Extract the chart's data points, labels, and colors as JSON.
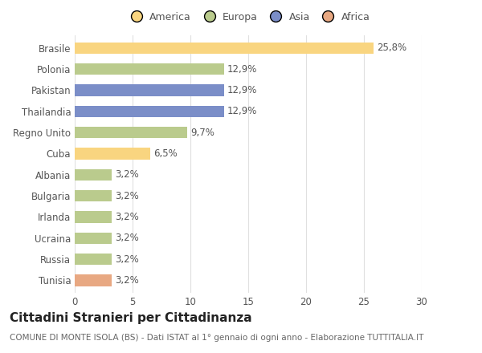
{
  "categories": [
    "Brasile",
    "Polonia",
    "Pakistan",
    "Thailandia",
    "Regno Unito",
    "Cuba",
    "Albania",
    "Bulgaria",
    "Irlanda",
    "Ucraina",
    "Russia",
    "Tunisia"
  ],
  "values": [
    25.8,
    12.9,
    12.9,
    12.9,
    9.7,
    6.5,
    3.2,
    3.2,
    3.2,
    3.2,
    3.2,
    3.2
  ],
  "labels": [
    "25,8%",
    "12,9%",
    "12,9%",
    "12,9%",
    "9,7%",
    "6,5%",
    "3,2%",
    "3,2%",
    "3,2%",
    "3,2%",
    "3,2%",
    "3,2%"
  ],
  "colors": [
    "#F9D580",
    "#BACB8D",
    "#7B8EC8",
    "#7B8EC8",
    "#BACB8D",
    "#F9D580",
    "#BACB8D",
    "#BACB8D",
    "#BACB8D",
    "#BACB8D",
    "#BACB8D",
    "#E8A882"
  ],
  "legend_labels": [
    "America",
    "Europa",
    "Asia",
    "Africa"
  ],
  "legend_colors": [
    "#F9D580",
    "#BACB8D",
    "#7B8EC8",
    "#E8A882"
  ],
  "title": "Cittadini Stranieri per Cittadinanza",
  "subtitle": "COMUNE DI MONTE ISOLA (BS) - Dati ISTAT al 1° gennaio di ogni anno - Elaborazione TUTTITALIA.IT",
  "xlim": [
    0,
    30
  ],
  "xticks": [
    0,
    5,
    10,
    15,
    20,
    25,
    30
  ],
  "background_color": "#ffffff",
  "grid_color": "#e0e0e0",
  "bar_height": 0.55,
  "title_fontsize": 11,
  "subtitle_fontsize": 7.5,
  "label_fontsize": 8.5,
  "tick_fontsize": 8.5,
  "legend_fontsize": 9
}
